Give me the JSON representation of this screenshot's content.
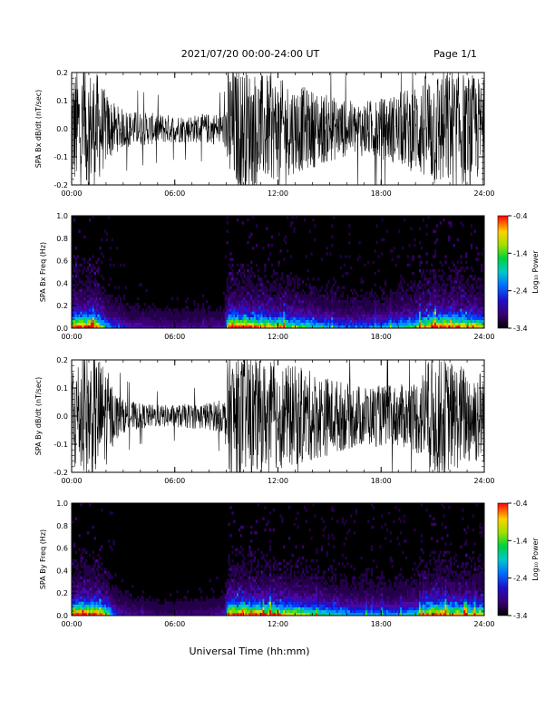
{
  "header": {
    "title": "2021/07/20  00:00-24:00 UT",
    "page": "Page 1/1"
  },
  "xlabel": "Universal Time (hh:mm)",
  "chart_data": [
    {
      "type": "line",
      "ylabel": "SPA Bx dB/dt (nT/sec)",
      "ylim": [
        -0.2,
        0.2
      ],
      "yticks": [
        "0.2",
        "0.1",
        "0.0",
        "-0.1",
        "-0.2"
      ],
      "xlim": [
        0,
        24
      ],
      "xticks": [
        "00:00",
        "06:00",
        "12:00",
        "18:00",
        "24:00"
      ],
      "envelope": {
        "hours": [
          0,
          0.5,
          1,
          1.5,
          2,
          2.5,
          3,
          4,
          5,
          6,
          7,
          8,
          8.9,
          9.1,
          9.5,
          10,
          11,
          12,
          13,
          14,
          15,
          16,
          17,
          18,
          19,
          20,
          21,
          22,
          23,
          24
        ],
        "amplitude": [
          0.22,
          0.22,
          0.22,
          0.2,
          0.13,
          0.09,
          0.07,
          0.06,
          0.055,
          0.05,
          0.05,
          0.055,
          0.06,
          0.22,
          0.22,
          0.22,
          0.2,
          0.18,
          0.16,
          0.14,
          0.12,
          0.1,
          0.1,
          0.11,
          0.13,
          0.16,
          0.22,
          0.22,
          0.2,
          0.18
        ]
      }
    },
    {
      "type": "heatmap",
      "ylabel": "SPA Bx Freq (Hz)",
      "ylim": [
        0,
        1.0
      ],
      "yticks": [
        "1.0",
        "0.8",
        "0.6",
        "0.4",
        "0.2",
        "0.0"
      ],
      "xlim": [
        0,
        24
      ],
      "xticks": [
        "00:00",
        "06:00",
        "12:00",
        "18:00",
        "24:00"
      ],
      "colorbar": {
        "label": "Log₁₀ Power",
        "range": [
          -3.4,
          -0.4
        ],
        "ticks": [
          "-0.4",
          "-1.4",
          "-2.4",
          "-3.4"
        ]
      }
    },
    {
      "type": "line",
      "ylabel": "SPA By dB/dt (nT/sec)",
      "ylim": [
        -0.2,
        0.2
      ],
      "yticks": [
        "0.2",
        "0.1",
        "0.0",
        "-0.1",
        "-0.2"
      ],
      "xlim": [
        0,
        24
      ],
      "xticks": [
        "00:00",
        "06:00",
        "12:00",
        "18:00",
        "24:00"
      ],
      "envelope": {
        "hours": [
          0,
          0.5,
          1,
          1.5,
          2,
          2.5,
          3,
          4,
          5,
          6,
          7,
          8,
          8.9,
          9.1,
          9.5,
          10,
          11,
          12,
          13,
          14,
          15,
          16,
          17,
          18,
          19,
          20,
          21,
          22,
          23,
          24
        ],
        "amplitude": [
          0.22,
          0.22,
          0.22,
          0.22,
          0.18,
          0.09,
          0.06,
          0.045,
          0.04,
          0.04,
          0.045,
          0.05,
          0.06,
          0.22,
          0.22,
          0.22,
          0.2,
          0.19,
          0.18,
          0.16,
          0.14,
          0.12,
          0.11,
          0.11,
          0.11,
          0.13,
          0.22,
          0.2,
          0.18,
          0.17
        ]
      }
    },
    {
      "type": "heatmap",
      "ylabel": "SPA By Freq (Hz)",
      "ylim": [
        0,
        1.0
      ],
      "yticks": [
        "1.0",
        "0.8",
        "0.6",
        "0.4",
        "0.2",
        "0.0"
      ],
      "xlim": [
        0,
        24
      ],
      "xticks": [
        "00:00",
        "06:00",
        "12:00",
        "18:00",
        "24:00"
      ],
      "colorbar": {
        "label": "Log₁₀ Power",
        "range": [
          -3.4,
          -0.4
        ],
        "ticks": [
          "-0.4",
          "-1.4",
          "-2.4",
          "-3.4"
        ]
      }
    }
  ]
}
